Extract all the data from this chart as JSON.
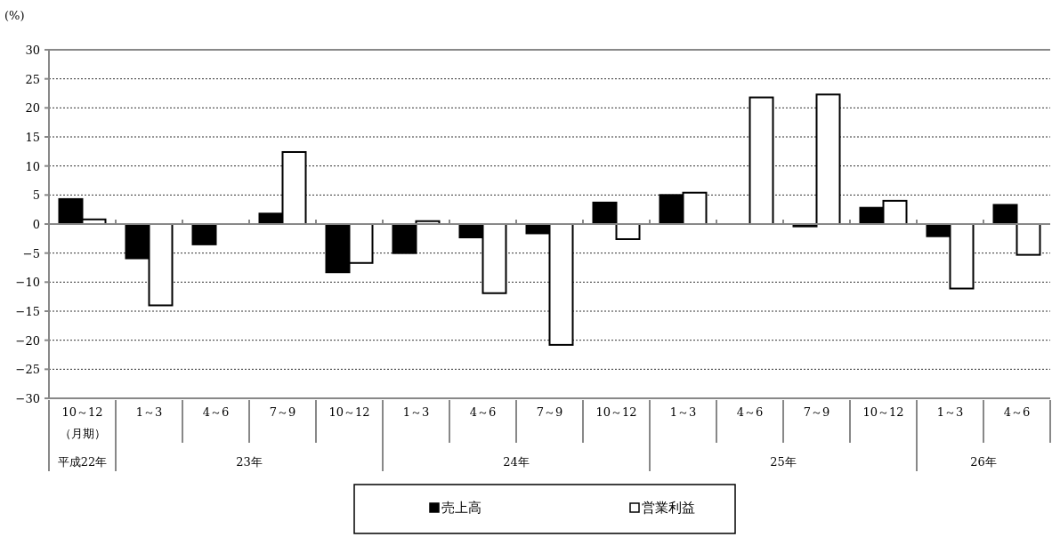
{
  "chart_data": {
    "type": "bar",
    "ylabel": "(%)",
    "categories": [
      "10～12",
      "1～3",
      "4～6",
      "7～9",
      "10～12",
      "1～3",
      "4～6",
      "7～9",
      "10～12",
      "1～3",
      "4～6",
      "7～9",
      "10～12",
      "1～3",
      "4～6"
    ],
    "series": [
      {
        "name": "売上高",
        "color": "#000000",
        "values": [
          4.3,
          -5.9,
          -3.5,
          1.8,
          -8.3,
          -5.0,
          -2.3,
          -1.6,
          3.7,
          5.0,
          null,
          -0.4,
          2.8,
          -2.1,
          3.3
        ]
      },
      {
        "name": "営業利益",
        "color": "#ffffff",
        "values": [
          0.8,
          -14.0,
          null,
          12.4,
          -6.7,
          0.5,
          -11.9,
          -20.8,
          -2.6,
          5.4,
          21.8,
          22.3,
          4.0,
          -11.1,
          -5.3
        ]
      }
    ],
    "annotations": [
      "（月期）",
      "平成22年",
      "23年",
      "24年",
      "25年",
      "26年"
    ],
    "ylim": [
      -30,
      30
    ],
    "yticks": [
      -30,
      -25,
      -20,
      -15,
      -10,
      -5,
      0,
      5,
      10,
      15,
      20,
      25,
      30
    ],
    "grid": "y",
    "legend": "bottom"
  }
}
